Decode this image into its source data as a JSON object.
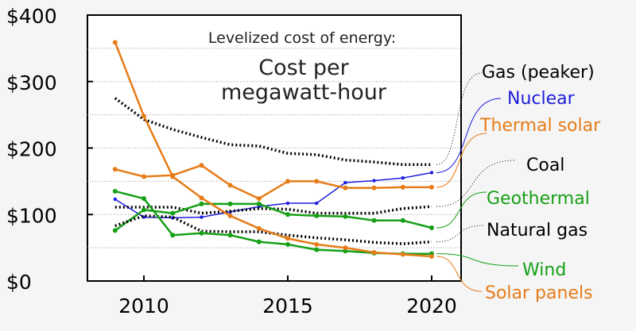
{
  "chart_data": {
    "type": "line",
    "title": "Levelized cost of energy:",
    "subtitle_lines": [
      "Cost per",
      "megawatt-hour"
    ],
    "xlabel": "",
    "ylabel": "",
    "xlim": [
      2008,
      2021
    ],
    "ylim": [
      0,
      400
    ],
    "x_ticks": [
      {
        "value": 2010,
        "label": "2010"
      },
      {
        "value": 2015,
        "label": "2015"
      },
      {
        "value": 2020,
        "label": "2020"
      }
    ],
    "y_ticks": [
      {
        "value": 0,
        "label": "$0"
      },
      {
        "value": 100,
        "label": "$100"
      },
      {
        "value": 200,
        "label": "$200"
      },
      {
        "value": 300,
        "label": "$300"
      },
      {
        "value": 400,
        "label": "$400"
      }
    ],
    "grid": "horizontal dotted",
    "legend_placement": "right, labels beside line ends",
    "series": [
      {
        "name": "Gas (peaker)",
        "color": "#000000",
        "style": "dotted",
        "markers": false,
        "x": [
          2009,
          2010,
          2011,
          2012,
          2013,
          2014,
          2015,
          2016,
          2017,
          2018,
          2019,
          2020
        ],
        "values": [
          275,
          243,
          228,
          216,
          205,
          203,
          192,
          190,
          182,
          179,
          175,
          175
        ]
      },
      {
        "name": "Nuclear",
        "color": "#1f1fdc",
        "style": "solid",
        "markers": true,
        "x": [
          2009,
          2010,
          2011,
          2012,
          2013,
          2014,
          2015,
          2016,
          2017,
          2018,
          2019,
          2020
        ],
        "values": [
          123,
          96,
          95,
          96,
          104,
          112,
          117,
          117,
          148,
          151,
          155,
          163
        ]
      },
      {
        "name": "Thermal solar",
        "color": "#e67c18",
        "style": "solid",
        "markers": true,
        "x": [
          2009,
          2010,
          2011,
          2012,
          2013,
          2014,
          2015,
          2016,
          2017,
          2018,
          2019,
          2020
        ],
        "values": [
          168,
          157,
          159,
          174,
          144,
          124,
          150,
          150,
          140,
          140,
          141,
          141
        ]
      },
      {
        "name": "Coal",
        "color": "#000000",
        "style": "dotted",
        "markers": false,
        "x": [
          2009,
          2010,
          2011,
          2012,
          2013,
          2014,
          2015,
          2016,
          2017,
          2018,
          2019,
          2020
        ],
        "values": [
          111,
          111,
          111,
          102,
          105,
          109,
          108,
          102,
          102,
          102,
          109,
          112
        ]
      },
      {
        "name": "Geothermal",
        "color": "#16a016",
        "style": "solid",
        "markers": true,
        "x": [
          2009,
          2010,
          2011,
          2012,
          2013,
          2014,
          2015,
          2016,
          2017,
          2018,
          2019,
          2020
        ],
        "values": [
          76,
          107,
          102,
          116,
          116,
          116,
          100,
          98,
          97,
          91,
          91,
          80
        ]
      },
      {
        "name": "Natural gas",
        "color": "#000000",
        "style": "dotted",
        "markers": false,
        "x": [
          2009,
          2010,
          2011,
          2012,
          2013,
          2014,
          2015,
          2016,
          2017,
          2018,
          2019,
          2020
        ],
        "values": [
          83,
          98,
          96,
          75,
          74,
          74,
          69,
          65,
          62,
          58,
          56,
          59
        ]
      },
      {
        "name": "Wind",
        "color": "#16a016",
        "style": "solid",
        "markers": true,
        "x": [
          2009,
          2010,
          2011,
          2012,
          2013,
          2014,
          2015,
          2016,
          2017,
          2018,
          2019,
          2020
        ],
        "values": [
          135,
          124,
          69,
          72,
          69,
          59,
          55,
          47,
          45,
          42,
          41,
          41
        ]
      },
      {
        "name": "Solar panels",
        "color": "#e67c18",
        "style": "solid",
        "markers": true,
        "x": [
          2009,
          2010,
          2011,
          2012,
          2013,
          2014,
          2015,
          2016,
          2017,
          2018,
          2019,
          2020
        ],
        "values": [
          359,
          248,
          157,
          125,
          98,
          79,
          64,
          55,
          50,
          43,
          40,
          37
        ]
      }
    ]
  }
}
